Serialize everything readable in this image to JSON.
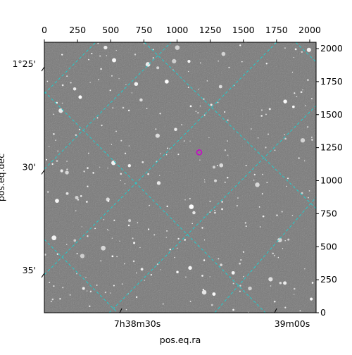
{
  "chart_data": {
    "type": "image",
    "x_label": "pos.eq.ra",
    "y_label": "pos.eq.dec",
    "xlim": [
      0,
      2048
    ],
    "ylim": [
      0,
      2048
    ],
    "xticks": [
      0,
      250,
      500,
      750,
      1000,
      1250,
      1500,
      1750,
      2000
    ],
    "yticks": [
      0,
      250,
      500,
      750,
      1000,
      1250,
      1500,
      1750,
      2000
    ],
    "ra_ticks": [
      {
        "value": 568,
        "label": "7h38m30s"
      },
      {
        "value": 1735,
        "label": "39m00s"
      }
    ],
    "dec_ticks": [
      {
        "value": 1861,
        "label": "1°25'"
      },
      {
        "value": 1080,
        "label": "30'"
      },
      {
        "value": 299,
        "label": "35'"
      }
    ],
    "marker": {
      "x": 1167,
      "y": 1214,
      "color": "#cc00cc"
    },
    "grid_color": "#22cccc"
  }
}
